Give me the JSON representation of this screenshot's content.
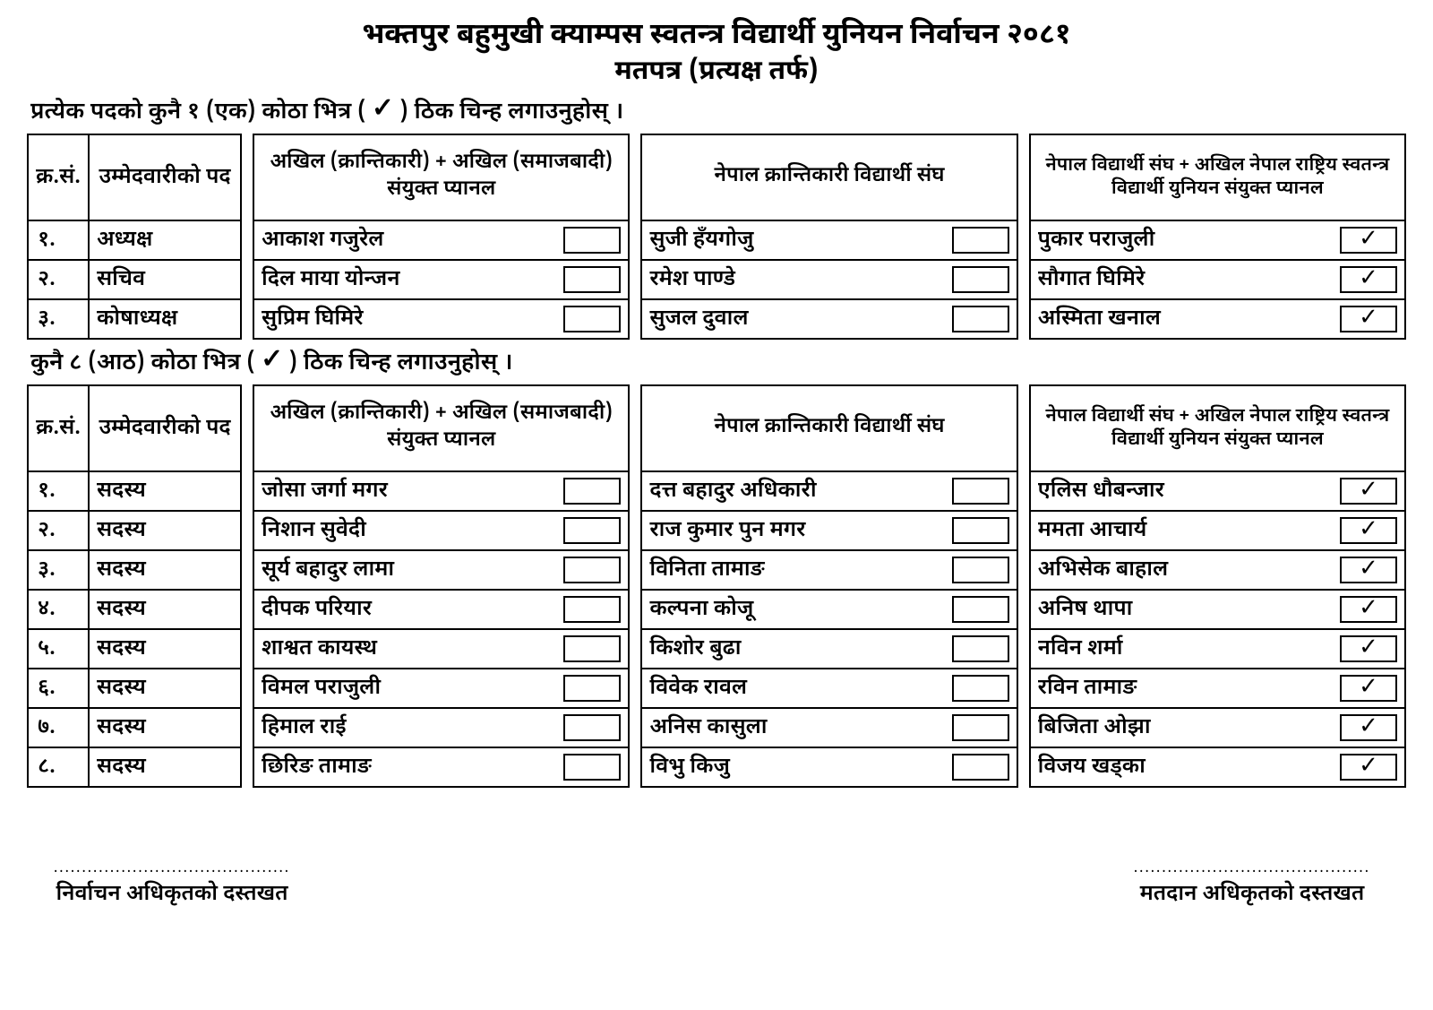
{
  "title_main": "भक्तपुर बहुमुखी क्याम्पस स्वतन्त्र विद्यार्थी युनियन निर्वाचन २०८१",
  "title_sub": "मतपत्र (प्रत्यक्ष तर्फ)",
  "instruction1_a": "प्रत्येक पदको कुनै १ (एक) कोठा भित्र (",
  "instruction1_b": ") ठिक चिन्ह लगाउनुहोस् ।",
  "instruction2_a": "कुनै ८ (आठ) कोठा भित्र (",
  "instruction2_b": ") ठिक चिन्ह लगाउनुहोस् ।",
  "check_symbol": "✓",
  "hdr_sn": "क्र.सं.",
  "hdr_pos": "उम्मेदवारीको पद",
  "panel1": "अखिल (क्रान्तिकारी) + अखिल (समाजबादी) संयुक्त प्यानल",
  "panel2": "नेपाल क्रान्तिकारी विद्यार्थी संघ",
  "panel3": "नेपाल विद्यार्थी संघ + अखिल नेपाल राष्ट्रिय स्वतन्त्र विद्यार्थी युनियन संयुक्त प्यानल",
  "section1": {
    "rows": [
      {
        "sn": "१.",
        "pos": "अध्यक्ष",
        "p1": "आकाश गजुरेल",
        "c1": false,
        "p2": "सुजी हँयगोजु",
        "c2": false,
        "p3": "पुकार पराजुली",
        "c3": true
      },
      {
        "sn": "२.",
        "pos": "सचिव",
        "p1": "दिल माया योन्जन",
        "c1": false,
        "p2": "रमेश पाण्डे",
        "c2": false,
        "p3": "सौगात घिमिरे",
        "c3": true
      },
      {
        "sn": "३.",
        "pos": "कोषाध्यक्ष",
        "p1": "सुप्रिम घिमिरे",
        "c1": false,
        "p2": "सुजल दुवाल",
        "c2": false,
        "p3": "अस्मिता खनाल",
        "c3": true
      }
    ]
  },
  "section2": {
    "rows": [
      {
        "sn": "१.",
        "pos": "सदस्य",
        "p1": "जोसा जर्गा मगर",
        "c1": false,
        "p2": "दत्त बहादुर अधिकारी",
        "c2": false,
        "p3": "एलिस धौबन्जार",
        "c3": true
      },
      {
        "sn": "२.",
        "pos": "सदस्य",
        "p1": "निशान सुवेदी",
        "c1": false,
        "p2": "राज कुमार पुन मगर",
        "c2": false,
        "p3": "ममता आचार्य",
        "c3": true
      },
      {
        "sn": "३.",
        "pos": "सदस्य",
        "p1": "सूर्य बहादुर लामा",
        "c1": false,
        "p2": "विनिता तामाङ",
        "c2": false,
        "p3": "अभिसेक बाहाल",
        "c3": true
      },
      {
        "sn": "४.",
        "pos": "सदस्य",
        "p1": "दीपक परियार",
        "c1": false,
        "p2": "कल्पना कोजू",
        "c2": false,
        "p3": "अनिष थापा",
        "c3": true
      },
      {
        "sn": "५.",
        "pos": "सदस्य",
        "p1": "शाश्वत कायस्थ",
        "c1": false,
        "p2": "किशोर बुढा",
        "c2": false,
        "p3": "नविन शर्मा",
        "c3": true
      },
      {
        "sn": "६.",
        "pos": "सदस्य",
        "p1": "विमल पराजुली",
        "c1": false,
        "p2": "विवेक रावल",
        "c2": false,
        "p3": "रविन तामाङ",
        "c3": true
      },
      {
        "sn": "७.",
        "pos": "सदस्य",
        "p1": "हिमाल राई",
        "c1": false,
        "p2": "अनिस कासुला",
        "c2": false,
        "p3": "बिजिता ओझा",
        "c3": true
      },
      {
        "sn": "८.",
        "pos": "सदस्य",
        "p1": "छिरिङ तामाङ",
        "c1": false,
        "p2": "विभु किजु",
        "c2": false,
        "p3": "विजय खड्का",
        "c3": true
      }
    ]
  },
  "sig_dots": "..........................................",
  "sig_left": "निर्वाचन अधिकृतको दस्तखत",
  "sig_right": "मतदान अधिकृतको दस्तखत"
}
